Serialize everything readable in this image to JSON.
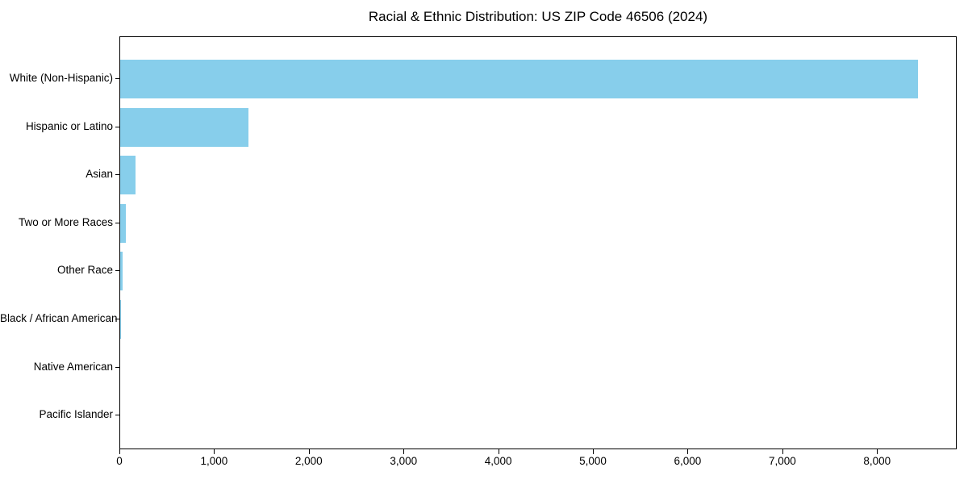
{
  "chart_data": {
    "type": "bar",
    "orientation": "horizontal",
    "title": "Racial & Ethnic Distribution: US ZIP Code 46506 (2024)",
    "categories": [
      "White (Non-Hispanic)",
      "Hispanic or Latino",
      "Asian",
      "Two or More Races",
      "Other Race",
      "Black / African American",
      "Native American",
      "Pacific Islander"
    ],
    "values": [
      8420,
      1350,
      160,
      62,
      25,
      10,
      0,
      0
    ],
    "xlabel": "",
    "ylabel": "",
    "xlim": [
      0,
      8841
    ],
    "x_ticks": [
      0,
      1000,
      2000,
      3000,
      4000,
      5000,
      6000,
      7000,
      8000
    ],
    "x_tick_labels": [
      "0",
      "1,000",
      "2,000",
      "3,000",
      "4,000",
      "5,000",
      "6,000",
      "7,000",
      "8,000"
    ],
    "bar_color": "#87CEEB",
    "axis_color": "#000000",
    "text_color": "#000000",
    "background": "#ffffff",
    "grid": false,
    "legend": "none"
  }
}
